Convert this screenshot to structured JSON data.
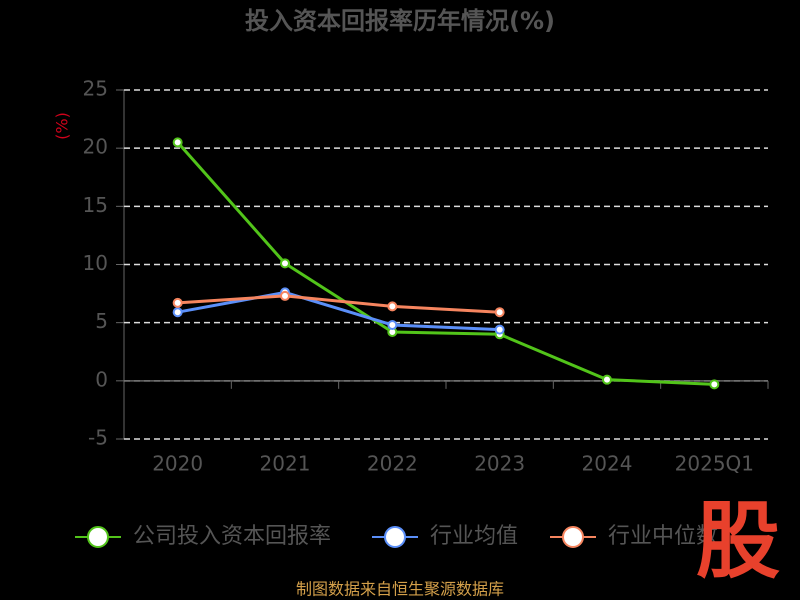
{
  "chart_data": {
    "type": "line",
    "title": "投入资本回报率历年情况(%)",
    "y_label": "(%)",
    "categories": [
      "2020",
      "2021",
      "2022",
      "2023",
      "2024",
      "2025Q1"
    ],
    "series": [
      {
        "name": "公司投入资本回报率",
        "color": "#52c41a",
        "values": [
          20.5,
          10.1,
          4.2,
          4.0,
          0.1,
          -0.3
        ]
      },
      {
        "name": "行业均值",
        "color": "#5b8ff9",
        "values": [
          5.9,
          7.6,
          4.8,
          4.4,
          null,
          null
        ]
      },
      {
        "name": "行业中位数",
        "color": "#f6855f",
        "values": [
          6.7,
          7.3,
          6.4,
          5.9,
          null,
          null
        ]
      }
    ],
    "ylim": [
      -5,
      25
    ],
    "yticks": [
      -5,
      0,
      5,
      10,
      15,
      20,
      25
    ],
    "grid": true,
    "source": "制图数据来自恒生聚源数据库",
    "logo": "股"
  }
}
